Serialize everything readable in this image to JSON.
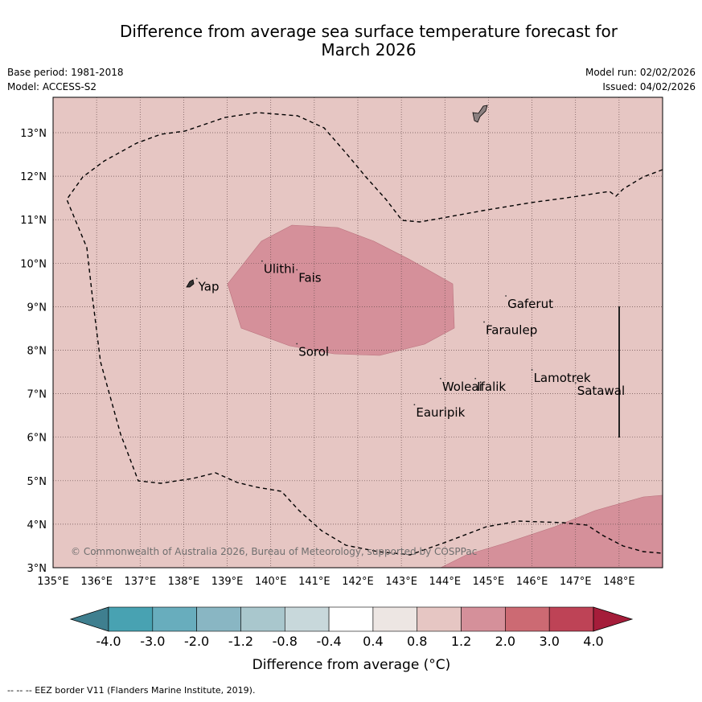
{
  "title": {
    "line1": "Difference from average sea surface temperature forecast for",
    "line2": "March 2026"
  },
  "meta": {
    "base_period": "Base period: 1981-2018",
    "model": "Model: ACCESS-S2",
    "model_run": "Model run: 02/02/2026",
    "issued": "Issued: 04/02/2026"
  },
  "map": {
    "lat_labels": [
      "3°N",
      "4°N",
      "5°N",
      "6°N",
      "7°N",
      "8°N",
      "9°N",
      "10°N",
      "11°N",
      "12°N",
      "13°N"
    ],
    "lon_labels": [
      "135°E",
      "136°E",
      "137°E",
      "138°E",
      "139°E",
      "140°E",
      "141°E",
      "142°E",
      "143°E",
      "144°E",
      "145°E",
      "146°E",
      "147°E",
      "148°E"
    ],
    "places": [
      {
        "name": "Yap",
        "lon": 138.3,
        "lat": 9.5
      },
      {
        "name": "Ulithi",
        "lon": 139.8,
        "lat": 9.9
      },
      {
        "name": "Fais",
        "lon": 140.6,
        "lat": 9.7
      },
      {
        "name": "Gaferut",
        "lon": 145.4,
        "lat": 9.1
      },
      {
        "name": "Faraulep",
        "lon": 144.9,
        "lat": 8.5
      },
      {
        "name": "Sorol",
        "lon": 140.6,
        "lat": 8.0
      },
      {
        "name": "Lamotrek",
        "lon": 146.0,
        "lat": 7.4
      },
      {
        "name": "Woleai",
        "lon": 143.9,
        "lat": 7.2
      },
      {
        "name": "Ifalik",
        "lon": 144.7,
        "lat": 7.2
      },
      {
        "name": "Satawal",
        "lon": 147.0,
        "lat": 7.1
      },
      {
        "name": "Eauripik",
        "lon": 143.3,
        "lat": 6.6
      }
    ],
    "background_color": "#e6c6c3",
    "warm_color": "#d5909a",
    "copyright": "© Commonwealth of Australia 2026, Bureau of Meteorology, supported by COSPPac"
  },
  "colorbar": {
    "labels": [
      "-4.0",
      "-3.0",
      "-2.0",
      "-1.2",
      "-0.8",
      "-0.4",
      "0.4",
      "0.8",
      "1.2",
      "2.0",
      "3.0",
      "4.0"
    ],
    "colors": [
      "#3f7f8f",
      "#48a2b2",
      "#68adbd",
      "#89b6c3",
      "#a9c7cd",
      "#c8d8db",
      "#ffffff",
      "#ede6e3",
      "#e6c6c3",
      "#d5909a",
      "#cc6a73",
      "#be4356",
      "#a51d3a"
    ],
    "label": "Difference from average (°C)"
  },
  "credit": "--  --  -- EEZ border V11 (Flanders Marine Institute, 2019)."
}
